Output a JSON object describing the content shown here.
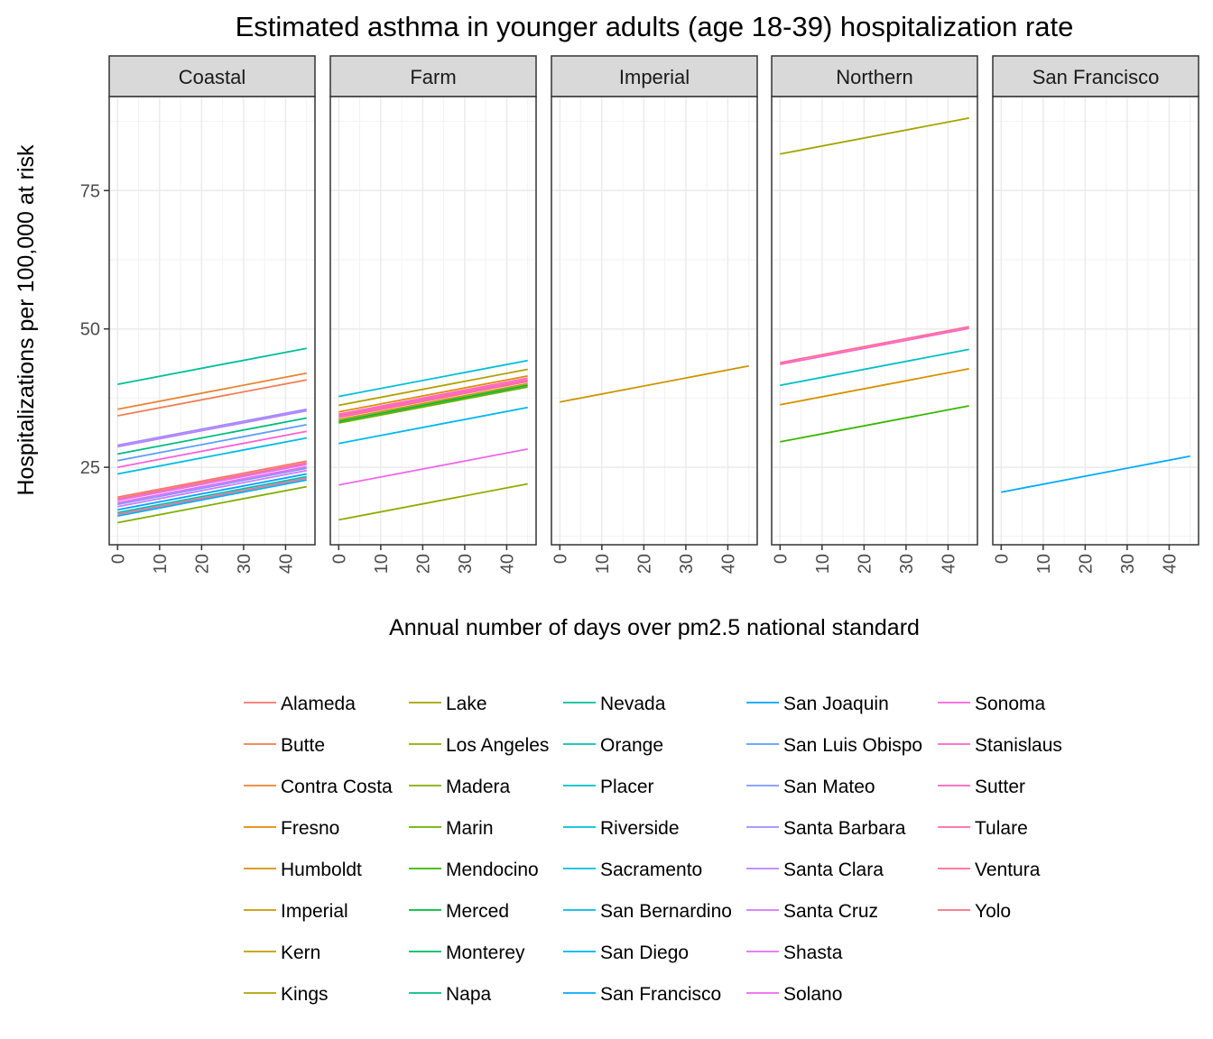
{
  "chart_data": {
    "type": "line",
    "title": "Estimated asthma in younger adults (age 18-39) hospitalization rate",
    "xlabel": "Annual number of days over pm2.5 national standard",
    "ylabel": "Hospitalizations per 100,000 at risk",
    "xlim": [
      -2,
      47
    ],
    "ylim": [
      11,
      92
    ],
    "x_ticks": [
      0,
      10,
      20,
      30,
      40
    ],
    "y_ticks": [
      25,
      50,
      75
    ],
    "grid": true,
    "legend_position": "bottom",
    "facets": [
      "Coastal",
      "Farm",
      "Imperial",
      "Northern",
      "San Francisco"
    ],
    "counties": [
      {
        "name": "Alameda",
        "color": "#F8766D"
      },
      {
        "name": "Butte",
        "color": "#F27D53"
      },
      {
        "name": "Contra Costa",
        "color": "#EA8331"
      },
      {
        "name": "Fresno",
        "color": "#E28A00"
      },
      {
        "name": "Humboldt",
        "color": "#D89000"
      },
      {
        "name": "Imperial",
        "color": "#CB9600"
      },
      {
        "name": "Kern",
        "color": "#C09B00"
      },
      {
        "name": "Kings",
        "color": "#B3A000"
      },
      {
        "name": "Lake",
        "color": "#A3A500"
      },
      {
        "name": "Los Angeles",
        "color": "#93AA00"
      },
      {
        "name": "Madera",
        "color": "#80AE00"
      },
      {
        "name": "Marin",
        "color": "#69B100"
      },
      {
        "name": "Mendocino",
        "color": "#39B600"
      },
      {
        "name": "Merced",
        "color": "#00B93B"
      },
      {
        "name": "Monterey",
        "color": "#00BB62"
      },
      {
        "name": "Napa",
        "color": "#00BD80"
      },
      {
        "name": "Nevada",
        "color": "#00BF9A"
      },
      {
        "name": "Orange",
        "color": "#00C0B0"
      },
      {
        "name": "Placer",
        "color": "#00C0C4"
      },
      {
        "name": "Riverside",
        "color": "#00BED6"
      },
      {
        "name": "Sacramento",
        "color": "#00BCE3"
      },
      {
        "name": "San Bernardino",
        "color": "#00B8ED"
      },
      {
        "name": "San Diego",
        "color": "#00B2F3"
      },
      {
        "name": "San Francisco",
        "color": "#00ABFD"
      },
      {
        "name": "San Joaquin",
        "color": "#00A2FF"
      },
      {
        "name": "San Luis Obispo",
        "color": "#5B9EFF"
      },
      {
        "name": "San Mateo",
        "color": "#7F96FF"
      },
      {
        "name": "Santa Barbara",
        "color": "#9F8CFF"
      },
      {
        "name": "Santa Clara",
        "color": "#B983FF"
      },
      {
        "name": "Santa Cruz",
        "color": "#CF78FF"
      },
      {
        "name": "Shasta",
        "color": "#E26EF7"
      },
      {
        "name": "Solano",
        "color": "#EF67EB"
      },
      {
        "name": "Sonoma",
        "color": "#FA62DB"
      },
      {
        "name": "Stanislaus",
        "color": "#FF62C9"
      },
      {
        "name": "Sutter",
        "color": "#FF64B4"
      },
      {
        "name": "Tulare",
        "color": "#FF699C"
      },
      {
        "name": "Ventura",
        "color": "#FF6C90"
      },
      {
        "name": "Yolo",
        "color": "#FB6F83"
      }
    ],
    "series": [
      {
        "facet": "Coastal",
        "county": "Nevada",
        "x": [
          0,
          45
        ],
        "y": [
          40.0,
          46.5
        ]
      },
      {
        "facet": "Coastal",
        "county": "Contra Costa",
        "x": [
          0,
          45
        ],
        "y": [
          35.5,
          42.0
        ]
      },
      {
        "facet": "Coastal",
        "county": "Butte",
        "x": [
          0,
          45
        ],
        "y": [
          34.3,
          40.8
        ]
      },
      {
        "facet": "Coastal",
        "county": "Santa Barbara",
        "x": [
          0,
          45
        ],
        "y": [
          29.0,
          35.5
        ]
      },
      {
        "facet": "Coastal",
        "county": "Santa Clara",
        "x": [
          0,
          45
        ],
        "y": [
          28.7,
          35.2
        ]
      },
      {
        "facet": "Coastal",
        "county": "Napa",
        "x": [
          0,
          45
        ],
        "y": [
          27.4,
          33.9
        ]
      },
      {
        "facet": "Coastal",
        "county": "San Luis Obispo",
        "x": [
          0,
          45
        ],
        "y": [
          26.2,
          32.7
        ]
      },
      {
        "facet": "Coastal",
        "county": "Sonoma",
        "x": [
          0,
          45
        ],
        "y": [
          25.0,
          31.5
        ]
      },
      {
        "facet": "Coastal",
        "county": "Sacramento",
        "x": [
          0,
          45
        ],
        "y": [
          23.8,
          30.3
        ]
      },
      {
        "facet": "Coastal",
        "county": "Alameda",
        "x": [
          0,
          45
        ],
        "y": [
          19.6,
          26.1
        ]
      },
      {
        "facet": "Coastal",
        "county": "Yolo",
        "x": [
          0,
          45
        ],
        "y": [
          19.3,
          25.8
        ]
      },
      {
        "facet": "Coastal",
        "county": "Shasta",
        "x": [
          0,
          45
        ],
        "y": [
          19.0,
          25.5
        ]
      },
      {
        "facet": "Coastal",
        "county": "Solano",
        "x": [
          0,
          45
        ],
        "y": [
          18.6,
          25.1
        ]
      },
      {
        "facet": "Coastal",
        "county": "San Mateo",
        "x": [
          0,
          45
        ],
        "y": [
          18.3,
          24.8
        ]
      },
      {
        "facet": "Coastal",
        "county": "Santa Cruz",
        "x": [
          0,
          45
        ],
        "y": [
          17.9,
          24.4
        ]
      },
      {
        "facet": "Coastal",
        "county": "San Joaquin",
        "x": [
          0,
          45
        ],
        "y": [
          17.3,
          23.8
        ]
      },
      {
        "facet": "Coastal",
        "county": "Orange",
        "x": [
          0,
          45
        ],
        "y": [
          16.8,
          23.3
        ]
      },
      {
        "facet": "Coastal",
        "county": "Ventura",
        "x": [
          0,
          45
        ],
        "y": [
          16.5,
          23.0
        ]
      },
      {
        "facet": "Coastal",
        "county": "San Diego",
        "x": [
          0,
          45
        ],
        "y": [
          16.2,
          22.7
        ]
      },
      {
        "facet": "Coastal",
        "county": "Madera",
        "x": [
          0,
          45
        ],
        "y": [
          15.0,
          21.5
        ]
      },
      {
        "facet": "Farm",
        "county": "Riverside",
        "x": [
          0,
          45
        ],
        "y": [
          37.8,
          44.3
        ]
      },
      {
        "facet": "Farm",
        "county": "Kings",
        "x": [
          0,
          45
        ],
        "y": [
          36.2,
          42.7
        ]
      },
      {
        "facet": "Farm",
        "county": "Fresno",
        "x": [
          0,
          45
        ],
        "y": [
          35.0,
          41.5
        ]
      },
      {
        "facet": "Farm",
        "county": "Stanislaus",
        "x": [
          0,
          45
        ],
        "y": [
          34.6,
          41.1
        ]
      },
      {
        "facet": "Farm",
        "county": "Sutter",
        "x": [
          0,
          45
        ],
        "y": [
          34.3,
          40.8
        ]
      },
      {
        "facet": "Farm",
        "county": "Tulare",
        "x": [
          0,
          45
        ],
        "y": [
          34.0,
          40.5
        ]
      },
      {
        "facet": "Farm",
        "county": "Kern",
        "x": [
          0,
          45
        ],
        "y": [
          33.6,
          40.1
        ]
      },
      {
        "facet": "Farm",
        "county": "Merced",
        "x": [
          0,
          45
        ],
        "y": [
          33.3,
          39.8
        ]
      },
      {
        "facet": "Farm",
        "county": "Marin",
        "x": [
          0,
          45
        ],
        "y": [
          33.0,
          39.5
        ]
      },
      {
        "facet": "Farm",
        "county": "San Bernardino",
        "x": [
          0,
          45
        ],
        "y": [
          29.3,
          35.8
        ]
      },
      {
        "facet": "Farm",
        "county": "Solano",
        "x": [
          0,
          45
        ],
        "y": [
          21.8,
          28.3
        ]
      },
      {
        "facet": "Farm",
        "county": "Los Angeles",
        "x": [
          0,
          45
        ],
        "y": [
          15.5,
          22.0
        ]
      },
      {
        "facet": "Imperial",
        "county": "Imperial",
        "x": [
          0,
          45
        ],
        "y": [
          36.8,
          43.3
        ]
      },
      {
        "facet": "Northern",
        "county": "Lake",
        "x": [
          0,
          45
        ],
        "y": [
          81.6,
          88.1
        ]
      },
      {
        "facet": "Northern",
        "county": "Ventura",
        "x": [
          0,
          45
        ],
        "y": [
          43.9,
          50.4
        ]
      },
      {
        "facet": "Northern",
        "county": "Stanislaus",
        "x": [
          0,
          45
        ],
        "y": [
          43.6,
          50.1
        ]
      },
      {
        "facet": "Northern",
        "county": "Placer",
        "x": [
          0,
          45
        ],
        "y": [
          39.8,
          46.3
        ]
      },
      {
        "facet": "Northern",
        "county": "Humboldt",
        "x": [
          0,
          45
        ],
        "y": [
          36.3,
          42.8
        ]
      },
      {
        "facet": "Northern",
        "county": "Mendocino",
        "x": [
          0,
          45
        ],
        "y": [
          29.6,
          36.1
        ]
      },
      {
        "facet": "San Francisco",
        "county": "San Francisco",
        "x": [
          0,
          45
        ],
        "y": [
          20.5,
          27.0
        ]
      }
    ]
  }
}
